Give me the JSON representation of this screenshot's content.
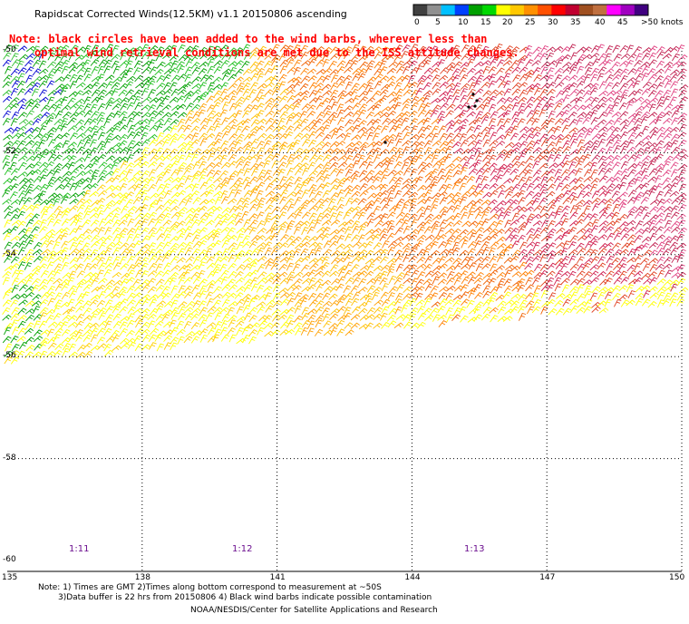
{
  "title": "Rapidscat Corrected Winds(12.5KM) v1.1 20150806 ascending",
  "note_line1": "Note: black circles have been added to the wind barbs, wherever less than",
  "note_line2": "optimal wind retrieval conditions are met due to the ISS attitude changes.",
  "color_scale": {
    "colors": [
      "#404040",
      "#909090",
      "#00c0ff",
      "#0040ff",
      "#00a000",
      "#00d800",
      "#ffff00",
      "#ffc800",
      "#ff9000",
      "#ff5000",
      "#ff0000",
      "#c00030",
      "#a05020",
      "#c07040",
      "#ff00ff",
      "#a000c0",
      "#400080"
    ],
    "labels": [
      "0",
      "5",
      "10",
      "15",
      "20",
      "25",
      "30",
      "35",
      "40",
      "45",
      ">50 knots"
    ]
  },
  "lat_labels": [
    "-50",
    "-52",
    "-54",
    "-56",
    "-58",
    "-60"
  ],
  "lon_labels": [
    "135",
    "138",
    "141",
    "144",
    "147",
    "150"
  ],
  "time_labels": [
    "1:11",
    "1:12",
    "1:13"
  ],
  "footer": {
    "line1": "Note: 1) Times are GMT 2)Times along bottom correspond to measurement at ~50S",
    "line2": "3)Data buffer is 22 hrs from 20150806 4) Black wind barbs indicate possible contamination",
    "line3": "NOAA/NESDIS/Center for Satellite Applications and Research"
  }
}
